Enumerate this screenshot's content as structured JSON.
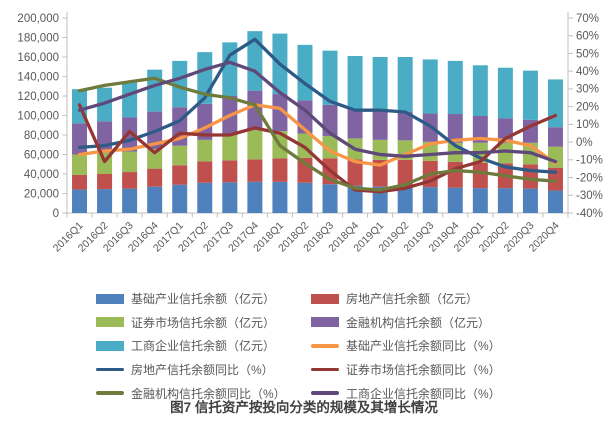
{
  "figure_caption": "图7  信托资产按投向分类的规模及其增长情况",
  "chart_data": {
    "type": "combo: stacked bar + line (dual axis)",
    "categories": [
      "2016Q1",
      "2016Q2",
      "2016Q3",
      "2016Q4",
      "2017Q1",
      "2017Q2",
      "2017Q3",
      "2017Q4",
      "2018Q1",
      "2018Q2",
      "2018Q3",
      "2018Q4",
      "2019Q1",
      "2019Q2",
      "2019Q3",
      "2019Q4",
      "2020Q1",
      "2020Q2",
      "2020Q3",
      "2020Q4"
    ],
    "left_axis": {
      "min": 0,
      "max": 200000,
      "step": 20000,
      "format": "thousands-comma"
    },
    "right_axis": {
      "min": -40,
      "max": 70,
      "step": 10,
      "format": "percent"
    },
    "grid": "off",
    "legend_position": "bottom two-column",
    "bar_series": [
      {
        "name": "基础产业信托余额（亿元）",
        "color": "#4F81BD",
        "values": [
          24000,
          24500,
          25000,
          27000,
          29000,
          31000,
          31500,
          32000,
          32000,
          31000,
          29500,
          28000,
          27000,
          27000,
          26500,
          26000,
          25500,
          25500,
          25000,
          23000
        ]
      },
      {
        "name": "房地产信托余额（亿元）",
        "color": "#C0504D",
        "values": [
          15000,
          15500,
          17000,
          18500,
          20000,
          22000,
          22500,
          23000,
          24000,
          25500,
          26500,
          27000,
          27500,
          27500,
          27000,
          26500,
          26000,
          25500,
          25000,
          23500
        ]
      },
      {
        "name": "证券市场信托余额（亿元）",
        "color": "#9BBB59",
        "values": [
          21000,
          22000,
          21000,
          20000,
          20000,
          22000,
          26000,
          30000,
          28000,
          25000,
          23000,
          21500,
          20500,
          20000,
          19500,
          19500,
          20500,
          21000,
          22000,
          21500
        ]
      },
      {
        "name": "金融机构信托余额（亿元）",
        "color": "#8064A2",
        "values": [
          32000,
          32000,
          35000,
          38500,
          39500,
          37000,
          40000,
          40500,
          38000,
          34000,
          32000,
          30500,
          30000,
          29500,
          29000,
          29500,
          27500,
          25000,
          23500,
          20000
        ]
      },
      {
        "name": "工商企业信托余额（亿元）",
        "color": "#4BACC6",
        "values": [
          35000,
          34500,
          37000,
          43000,
          47500,
          53000,
          55000,
          61000,
          62000,
          57000,
          55500,
          54000,
          55000,
          56000,
          55500,
          54500,
          52000,
          52000,
          50500,
          49000
        ]
      }
    ],
    "line_series": [
      {
        "name": "基础产业信托余额同比（%）",
        "color": "#F79646",
        "values": [
          -7,
          -5,
          -4,
          -1,
          2,
          8,
          15,
          21,
          19,
          7,
          -5,
          -11,
          -13,
          -7,
          -1,
          1,
          2,
          1,
          -2,
          -12
        ]
      },
      {
        "name": "房地产信托余额同比（%）",
        "color": "#2E5A87",
        "values": [
          -3,
          -2,
          1,
          6,
          12,
          25,
          49,
          58,
          44,
          33,
          23,
          18,
          18,
          17,
          9,
          -2,
          -9,
          -14,
          -16,
          -17
        ]
      },
      {
        "name": "证券市场信托余额同比（%）",
        "color": "#943634",
        "values": [
          21,
          -11,
          6,
          -6,
          5,
          4,
          4,
          8,
          5,
          -3,
          -16,
          -27,
          -28,
          -26,
          -22,
          -15,
          -11,
          2,
          9,
          15
        ]
      },
      {
        "name": "金融机构信托余额同比（%）",
        "color": "#6E7B3C",
        "values": [
          29,
          32,
          34,
          36,
          31,
          27,
          25,
          21,
          -2,
          -12,
          -21,
          -26,
          -27,
          -24,
          -18,
          -16,
          -17,
          -19,
          -21,
          -22
        ]
      },
      {
        "name": "工商企业信托余额同比（%）",
        "color": "#5F497A",
        "values": [
          18,
          22,
          27,
          32,
          36,
          41,
          45,
          40,
          28,
          18,
          5,
          -4,
          -7,
          -8,
          -7,
          -6,
          -6,
          -5,
          -6,
          -11
        ]
      }
    ],
    "legend_items": [
      {
        "label": "基础产业信托余额（亿元）",
        "color": "#4F81BD",
        "kind": "bar"
      },
      {
        "label": "房地产信托余额（亿元）",
        "color": "#C0504D",
        "kind": "bar"
      },
      {
        "label": "证券市场信托余额（亿元）",
        "color": "#9BBB59",
        "kind": "bar"
      },
      {
        "label": "金融机构信托余额（亿元）",
        "color": "#8064A2",
        "kind": "bar"
      },
      {
        "label": "工商企业信托余额（亿元）",
        "color": "#4BACC6",
        "kind": "bar"
      },
      {
        "label": "基础产业信托余额同比（%）",
        "color": "#F79646",
        "kind": "line"
      },
      {
        "label": "房地产信托余额同比（%）",
        "color": "#2E5A87",
        "kind": "line"
      },
      {
        "label": "证券市场信托余额同比（%）",
        "color": "#943634",
        "kind": "line"
      },
      {
        "label": "金融机构信托余额同比（%）",
        "color": "#6E7B3C",
        "kind": "line"
      },
      {
        "label": "工商企业信托余额同比（%）",
        "color": "#5F497A",
        "kind": "line"
      }
    ],
    "axis_text_color": "#595959",
    "axis_line_color": "#BFBFBF"
  }
}
